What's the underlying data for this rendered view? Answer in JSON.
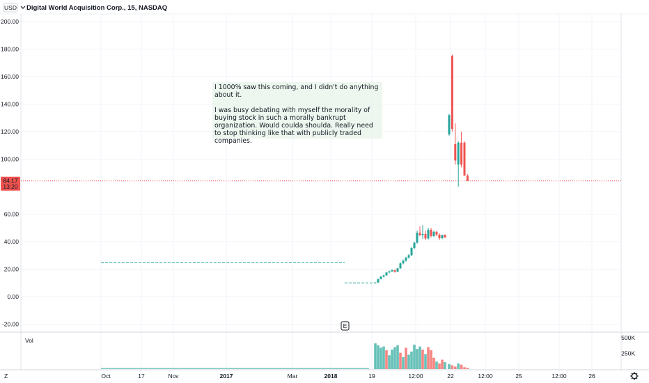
{
  "header": {
    "currency": "USD",
    "title": "Digital World Acquisition Corp., 15, NASDAQ"
  },
  "price_axis": {
    "ticks": [
      "200.00",
      "180.00",
      "160.00",
      "140.00",
      "120.00",
      "100.00",
      "60.00",
      "40.00",
      "20.00",
      "0.00",
      "-20.00"
    ],
    "tick_values": [
      200,
      180,
      160,
      140,
      120,
      100,
      60,
      40,
      20,
      0,
      -20
    ],
    "last_price": "84.17",
    "countdown": "13:20",
    "last_value": 84.17
  },
  "volume_pane": {
    "label": "Vol",
    "ticks": [
      "500K",
      "250K"
    ],
    "tick_values": [
      500000,
      250000
    ]
  },
  "time_axis": {
    "ticks": [
      "Oct",
      "17",
      "Nov",
      "2017",
      "Mar",
      "2018",
      "19",
      "12:00",
      "22",
      "12:00",
      "25",
      "12:00",
      "26"
    ],
    "bold": [
      "2017",
      "2018"
    ]
  },
  "annotation": {
    "text": "I 1000% saw this coming, and I didn't do anything about it.\n\nI was busy debating with myself the morality of buying stock in such a morally bankrupt organization. Would coulda shoulda. Really need to stop thinking like that with publicly traded companies."
  },
  "marker": "E",
  "bottom_left_icon": "Z",
  "bottom_right_icon": "gear-icon",
  "colors": {
    "up": "#26a69a",
    "down": "#ef5350",
    "grid": "#f0f3fa",
    "axis_text": "#131722",
    "last_price_bg": "#ef5350"
  },
  "chart_data": {
    "type": "candlestick",
    "title": "Digital World Acquisition Corp., 15, NASDAQ",
    "ylim": [
      -20,
      200
    ],
    "grid": true,
    "flat_segments": [
      {
        "from": "Oct",
        "to": "early 2018",
        "approx_value": 25
      },
      {
        "from": "2018",
        "to": "19",
        "approx_value": 10
      }
    ],
    "candles": [
      {
        "o": 10,
        "h": 10.5,
        "l": 9.9,
        "c": 10.3
      },
      {
        "o": 10.3,
        "h": 13,
        "l": 10,
        "c": 12.8
      },
      {
        "o": 12.8,
        "h": 15,
        "l": 12.5,
        "c": 14.6
      },
      {
        "o": 14.6,
        "h": 16,
        "l": 14,
        "c": 15.5
      },
      {
        "o": 15.5,
        "h": 18,
        "l": 15.2,
        "c": 17.6
      },
      {
        "o": 17.6,
        "h": 19,
        "l": 17,
        "c": 18.4
      },
      {
        "o": 18.4,
        "h": 20,
        "l": 17.8,
        "c": 19.2
      },
      {
        "o": 19.2,
        "h": 19.8,
        "l": 17.5,
        "c": 18.1
      },
      {
        "o": 18.1,
        "h": 21,
        "l": 17.9,
        "c": 20.6
      },
      {
        "o": 20.6,
        "h": 25,
        "l": 20.2,
        "c": 24.2
      },
      {
        "o": 24.2,
        "h": 27,
        "l": 23.5,
        "c": 26.1
      },
      {
        "o": 26.1,
        "h": 29,
        "l": 25.5,
        "c": 28.4
      },
      {
        "o": 28.4,
        "h": 31,
        "l": 27.8,
        "c": 30.1
      },
      {
        "o": 30.1,
        "h": 36,
        "l": 29.5,
        "c": 35.4
      },
      {
        "o": 35.4,
        "h": 40,
        "l": 34.5,
        "c": 39.2
      },
      {
        "o": 39.2,
        "h": 48,
        "l": 38.6,
        "c": 46.4
      },
      {
        "o": 46.4,
        "h": 51,
        "l": 44,
        "c": 44.8
      },
      {
        "o": 44.8,
        "h": 52,
        "l": 42,
        "c": 45.6
      },
      {
        "o": 45.6,
        "h": 48,
        "l": 41,
        "c": 42.3
      },
      {
        "o": 42.3,
        "h": 50,
        "l": 41.5,
        "c": 48.7
      },
      {
        "o": 48.7,
        "h": 50,
        "l": 43,
        "c": 44.1
      },
      {
        "o": 44.1,
        "h": 48,
        "l": 43.4,
        "c": 47.2
      },
      {
        "o": 47.2,
        "h": 47.8,
        "l": 44,
        "c": 45.1
      },
      {
        "o": 45.1,
        "h": 46,
        "l": 41,
        "c": 42.5
      },
      {
        "o": 42.5,
        "h": 45,
        "l": 41.8,
        "c": 44.9
      },
      {
        "o": 44.9,
        "h": 45.3,
        "l": 42.6,
        "c": 43.1
      },
      {
        "o": 118,
        "h": 133,
        "l": 117,
        "c": 132
      },
      {
        "o": 175,
        "h": 176,
        "l": 120,
        "c": 122
      },
      {
        "o": 111,
        "h": 126,
        "l": 96,
        "c": 99
      },
      {
        "o": 96,
        "h": 113,
        "l": 80,
        "c": 112
      },
      {
        "o": 112,
        "h": 120,
        "l": 94,
        "c": 96
      },
      {
        "o": 112,
        "h": 113,
        "l": 88,
        "c": 88
      },
      {
        "o": 88,
        "h": 89,
        "l": 84,
        "c": 84.17
      }
    ],
    "volume": [
      {
        "v": 410000,
        "up": true
      },
      {
        "v": 380000,
        "up": true
      },
      {
        "v": 340000,
        "up": true
      },
      {
        "v": 360000,
        "up": true
      },
      {
        "v": 300000,
        "up": false
      },
      {
        "v": 220000,
        "up": true
      },
      {
        "v": 310000,
        "up": true
      },
      {
        "v": 350000,
        "up": true
      },
      {
        "v": 380000,
        "up": true
      },
      {
        "v": 260000,
        "up": false
      },
      {
        "v": 190000,
        "up": true
      },
      {
        "v": 340000,
        "up": false
      },
      {
        "v": 230000,
        "up": true
      },
      {
        "v": 280000,
        "up": true
      },
      {
        "v": 390000,
        "up": true
      },
      {
        "v": 320000,
        "up": true
      },
      {
        "v": 360000,
        "up": true
      },
      {
        "v": 310000,
        "up": false
      },
      {
        "v": 240000,
        "up": true
      },
      {
        "v": 350000,
        "up": false
      },
      {
        "v": 300000,
        "up": false
      },
      {
        "v": 180000,
        "up": false
      },
      {
        "v": 120000,
        "up": true
      },
      {
        "v": 90000,
        "up": false
      },
      {
        "v": 150000,
        "up": false
      },
      {
        "v": 110000,
        "up": true
      },
      {
        "v": 80000,
        "up": true
      },
      {
        "v": 60000,
        "up": false
      },
      {
        "v": 40000,
        "up": false
      },
      {
        "v": 90000,
        "up": true
      },
      {
        "v": 70000,
        "up": false
      },
      {
        "v": 30000,
        "up": false
      },
      {
        "v": 20000,
        "up": false
      }
    ]
  }
}
